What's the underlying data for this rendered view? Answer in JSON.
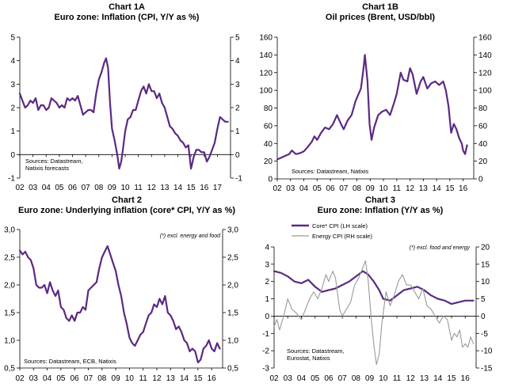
{
  "chart_data": [
    {
      "type": "line",
      "label": "Chart 1A",
      "title": "Euro zone: Inflation (CPI, Y/Y as %)",
      "categories": [
        "02",
        "03",
        "04",
        "05",
        "06",
        "07",
        "08",
        "09",
        "10",
        "11",
        "12",
        "13",
        "14",
        "15",
        "16",
        "17"
      ],
      "ylim": [
        -1,
        5
      ],
      "yticks": [
        "-1",
        "0",
        "1",
        "2",
        "3",
        "4",
        "5"
      ],
      "right_yticks": [
        "-1",
        "0",
        "1",
        "2",
        "3",
        "4",
        "5"
      ],
      "x_range": [
        2002,
        2018
      ],
      "source": [
        "Sources: Datastream,",
        "Natixis forecasts"
      ],
      "series": [
        {
          "name": "CPI",
          "color": "#5b2a83",
          "x": [
            2002.0,
            2002.2,
            2002.4,
            2002.6,
            2002.8,
            2003.0,
            2003.2,
            2003.4,
            2003.6,
            2003.8,
            2004.0,
            2004.2,
            2004.4,
            2004.6,
            2004.8,
            2005.0,
            2005.2,
            2005.4,
            2005.6,
            2005.8,
            2006.0,
            2006.2,
            2006.4,
            2006.6,
            2006.8,
            2007.0,
            2007.2,
            2007.4,
            2007.6,
            2007.8,
            2008.0,
            2008.2,
            2008.4,
            2008.55,
            2008.7,
            2008.85,
            2009.0,
            2009.2,
            2009.4,
            2009.55,
            2009.7,
            2009.85,
            2010.0,
            2010.2,
            2010.4,
            2010.6,
            2010.8,
            2011.0,
            2011.2,
            2011.4,
            2011.6,
            2011.8,
            2012.0,
            2012.2,
            2012.4,
            2012.6,
            2012.8,
            2013.0,
            2013.2,
            2013.4,
            2013.6,
            2013.8,
            2014.0,
            2014.2,
            2014.4,
            2014.6,
            2014.8,
            2015.0,
            2015.2,
            2015.4,
            2015.6,
            2015.8,
            2016.0,
            2016.2,
            2016.4,
            2016.6,
            2016.8,
            2017.0,
            2017.2,
            2017.4,
            2017.6,
            2017.8
          ],
          "values": [
            2.6,
            2.3,
            2.0,
            2.1,
            2.3,
            2.2,
            2.4,
            1.9,
            2.1,
            2.1,
            1.9,
            2.0,
            2.4,
            2.3,
            2.2,
            2.0,
            2.1,
            2.0,
            2.4,
            2.3,
            2.4,
            2.3,
            2.5,
            2.1,
            1.7,
            1.8,
            1.9,
            1.9,
            1.8,
            2.6,
            3.2,
            3.5,
            3.9,
            4.1,
            3.7,
            2.2,
            1.1,
            0.6,
            0.0,
            -0.6,
            -0.3,
            0.3,
            1.0,
            1.5,
            1.6,
            1.9,
            1.9,
            2.3,
            2.7,
            2.9,
            2.6,
            3.0,
            2.7,
            2.7,
            2.4,
            2.6,
            2.2,
            2.0,
            1.6,
            1.2,
            1.1,
            0.9,
            0.8,
            0.6,
            0.5,
            0.3,
            0.4,
            -0.6,
            -0.1,
            0.2,
            0.2,
            0.1,
            0.1,
            -0.3,
            -0.1,
            0.2,
            0.5,
            1.1,
            1.6,
            1.5,
            1.4,
            1.4
          ]
        }
      ]
    },
    {
      "type": "line",
      "label": "Chart 1B",
      "title": "Oil prices (Brent, USD/bbl)",
      "categories": [
        "02",
        "03",
        "04",
        "05",
        "06",
        "07",
        "08",
        "09",
        "10",
        "11",
        "12",
        "13",
        "14",
        "15",
        "16"
      ],
      "ylim": [
        0,
        160
      ],
      "yticks": [
        "0",
        "20",
        "40",
        "60",
        "80",
        "100",
        "120",
        "140",
        "160"
      ],
      "right_yticks": [
        "0",
        "20",
        "40",
        "60",
        "80",
        "100",
        "120",
        "140",
        "160"
      ],
      "x_range": [
        2002,
        2016.8
      ],
      "source": [
        "Sources: Datastream, Natixis"
      ],
      "series": [
        {
          "name": "Brent",
          "color": "#5b2a83",
          "x": [
            2002.0,
            2002.3,
            2002.6,
            2002.9,
            2003.1,
            2003.4,
            2003.7,
            2004.0,
            2004.3,
            2004.6,
            2004.8,
            2005.0,
            2005.3,
            2005.6,
            2005.9,
            2006.2,
            2006.5,
            2006.8,
            2007.0,
            2007.3,
            2007.6,
            2007.9,
            2008.1,
            2008.3,
            2008.5,
            2008.6,
            2008.8,
            2008.95,
            2009.1,
            2009.3,
            2009.6,
            2009.9,
            2010.2,
            2010.5,
            2010.8,
            2011.0,
            2011.3,
            2011.5,
            2011.8,
            2012.0,
            2012.2,
            2012.5,
            2012.8,
            2013.0,
            2013.3,
            2013.6,
            2013.9,
            2014.2,
            2014.5,
            2014.7,
            2014.9,
            2015.1,
            2015.3,
            2015.5,
            2015.7,
            2015.9,
            2016.0,
            2016.15,
            2016.3
          ],
          "values": [
            22,
            24,
            26,
            28,
            32,
            28,
            29,
            31,
            36,
            42,
            48,
            44,
            52,
            58,
            56,
            62,
            72,
            62,
            56,
            66,
            72,
            88,
            95,
            102,
            125,
            140,
            110,
            62,
            44,
            58,
            72,
            76,
            78,
            72,
            86,
            96,
            120,
            112,
            110,
            125,
            118,
            96,
            110,
            115,
            102,
            108,
            110,
            106,
            110,
            100,
            82,
            52,
            62,
            56,
            46,
            40,
            32,
            28,
            38
          ]
        }
      ]
    },
    {
      "type": "line",
      "label": "Chart 2",
      "title": "Euro zone: Underlying inflation (core* CPI, Y/Y as %)",
      "categories": [
        "02",
        "03",
        "04",
        "05",
        "06",
        "07",
        "08",
        "09",
        "10",
        "11",
        "12",
        "13",
        "14",
        "15",
        "16"
      ],
      "ylim": [
        0.5,
        3.0
      ],
      "yticks": [
        "0,5",
        "1,0",
        "1,5",
        "2,0",
        "2,5",
        "3,0"
      ],
      "right_yticks": [
        "0,5",
        "1,0",
        "1,5",
        "2,0",
        "2,5",
        "3,0"
      ],
      "x_range": [
        2002,
        2016.8
      ],
      "note": "(*) excl. energy and food",
      "source": [
        "Sources: Datastream, ECB, Natixis"
      ],
      "series": [
        {
          "name": "Core CPI",
          "color": "#5b2a83",
          "x": [
            2002.0,
            2002.2,
            2002.4,
            2002.6,
            2002.8,
            2003.0,
            2003.2,
            2003.4,
            2003.6,
            2003.8,
            2004.0,
            2004.2,
            2004.4,
            2004.6,
            2004.8,
            2005.0,
            2005.2,
            2005.4,
            2005.6,
            2005.8,
            2006.0,
            2006.2,
            2006.4,
            2006.6,
            2006.8,
            2007.0,
            2007.2,
            2007.4,
            2007.6,
            2007.8,
            2008.0,
            2008.2,
            2008.4,
            2008.6,
            2008.8,
            2009.0,
            2009.2,
            2009.4,
            2009.6,
            2009.8,
            2010.0,
            2010.2,
            2010.4,
            2010.6,
            2010.8,
            2011.0,
            2011.2,
            2011.4,
            2011.6,
            2011.8,
            2012.0,
            2012.2,
            2012.4,
            2012.6,
            2012.8,
            2013.0,
            2013.2,
            2013.4,
            2013.6,
            2013.8,
            2014.0,
            2014.2,
            2014.4,
            2014.6,
            2014.8,
            2015.0,
            2015.2,
            2015.4,
            2015.6,
            2015.8,
            2016.0,
            2016.2,
            2016.4,
            2016.6
          ],
          "values": [
            2.62,
            2.55,
            2.6,
            2.5,
            2.45,
            2.3,
            2.0,
            1.95,
            1.95,
            2.0,
            1.85,
            2.05,
            1.9,
            1.8,
            1.9,
            1.6,
            1.55,
            1.4,
            1.35,
            1.45,
            1.35,
            1.5,
            1.5,
            1.6,
            1.55,
            1.9,
            1.95,
            2.0,
            2.05,
            2.3,
            2.5,
            2.6,
            2.7,
            2.55,
            2.4,
            2.25,
            2.0,
            1.8,
            1.5,
            1.3,
            1.05,
            0.95,
            0.9,
            1.0,
            1.1,
            1.15,
            1.3,
            1.45,
            1.5,
            1.65,
            1.6,
            1.75,
            1.65,
            1.8,
            1.5,
            1.45,
            1.35,
            1.2,
            1.25,
            1.15,
            1.0,
            0.95,
            0.8,
            0.85,
            0.8,
            0.6,
            0.65,
            0.85,
            0.9,
            1.0,
            0.85,
            0.8,
            0.95,
            0.85
          ]
        }
      ]
    },
    {
      "type": "line",
      "label": "Chart 3",
      "title": "Euro zone: Inflation (Y/Y as %)",
      "categories": [
        "02",
        "03",
        "04",
        "05",
        "06",
        "07",
        "08",
        "09",
        "10",
        "11",
        "12",
        "13",
        "14",
        "15",
        "16"
      ],
      "ylim": [
        -3,
        4
      ],
      "right_ylim": [
        -15,
        20
      ],
      "yticks": [
        "-3",
        "-2",
        "-1",
        "0",
        "1",
        "2",
        "3",
        "4"
      ],
      "right_yticks": [
        "-15",
        "-10",
        "-5",
        "0",
        "5",
        "10",
        "15",
        "20"
      ],
      "x_range": [
        2002,
        2016.8
      ],
      "note": "(*) excl. food and energy",
      "source": [
        "Sources: Datastream,",
        "Eurostat, Natixis"
      ],
      "series": [
        {
          "name": "Core* CPI (LH scale)",
          "color": "#5b2a83",
          "x": [
            2002.0,
            2002.5,
            2003.0,
            2003.5,
            2004.0,
            2004.5,
            2005.0,
            2005.5,
            2006.0,
            2006.5,
            2007.0,
            2007.5,
            2008.0,
            2008.5,
            2008.9,
            2009.3,
            2009.7,
            2010.0,
            2010.5,
            2011.0,
            2011.5,
            2012.0,
            2012.5,
            2013.0,
            2013.5,
            2014.0,
            2014.5,
            2015.0,
            2015.5,
            2016.0,
            2016.6
          ],
          "values": [
            2.6,
            2.5,
            2.3,
            2.0,
            1.9,
            2.1,
            1.7,
            1.4,
            1.5,
            1.6,
            1.8,
            2.0,
            2.3,
            2.6,
            2.4,
            2.0,
            1.5,
            1.0,
            0.9,
            1.2,
            1.5,
            1.6,
            1.7,
            1.5,
            1.2,
            1.0,
            0.9,
            0.7,
            0.8,
            0.9,
            0.9
          ]
        },
        {
          "name": "Energy CPI (RH scale)",
          "color": "#9a9a9a",
          "axis": "right",
          "x": [
            2002.0,
            2002.2,
            2002.4,
            2002.7,
            2003.0,
            2003.3,
            2003.6,
            2004.0,
            2004.3,
            2004.6,
            2004.9,
            2005.2,
            2005.5,
            2005.8,
            2006.0,
            2006.3,
            2006.5,
            2006.8,
            2007.0,
            2007.3,
            2007.6,
            2007.9,
            2008.2,
            2008.5,
            2008.7,
            2008.9,
            2009.1,
            2009.3,
            2009.5,
            2009.7,
            2009.9,
            2010.2,
            2010.5,
            2010.8,
            2011.1,
            2011.4,
            2011.7,
            2012.0,
            2012.3,
            2012.6,
            2012.9,
            2013.2,
            2013.5,
            2013.8,
            2014.1,
            2014.4,
            2014.7,
            2015.0,
            2015.2,
            2015.4,
            2015.6,
            2015.8,
            2016.0,
            2016.2,
            2016.4,
            2016.6
          ],
          "values": [
            -3,
            -1,
            -4,
            0,
            5,
            2,
            1,
            -1,
            2,
            5,
            7,
            5,
            8,
            12,
            10,
            13,
            11,
            2,
            0,
            2,
            4,
            9,
            11,
            14,
            16,
            10,
            0,
            -8,
            -14,
            -11,
            -2,
            7,
            3,
            6,
            10,
            12,
            9,
            9,
            7,
            5,
            8,
            3,
            2,
            0,
            -2,
            0,
            -1,
            -7,
            -5,
            -6,
            -4,
            -9,
            -8,
            -9,
            -6,
            -8
          ]
        }
      ]
    }
  ]
}
